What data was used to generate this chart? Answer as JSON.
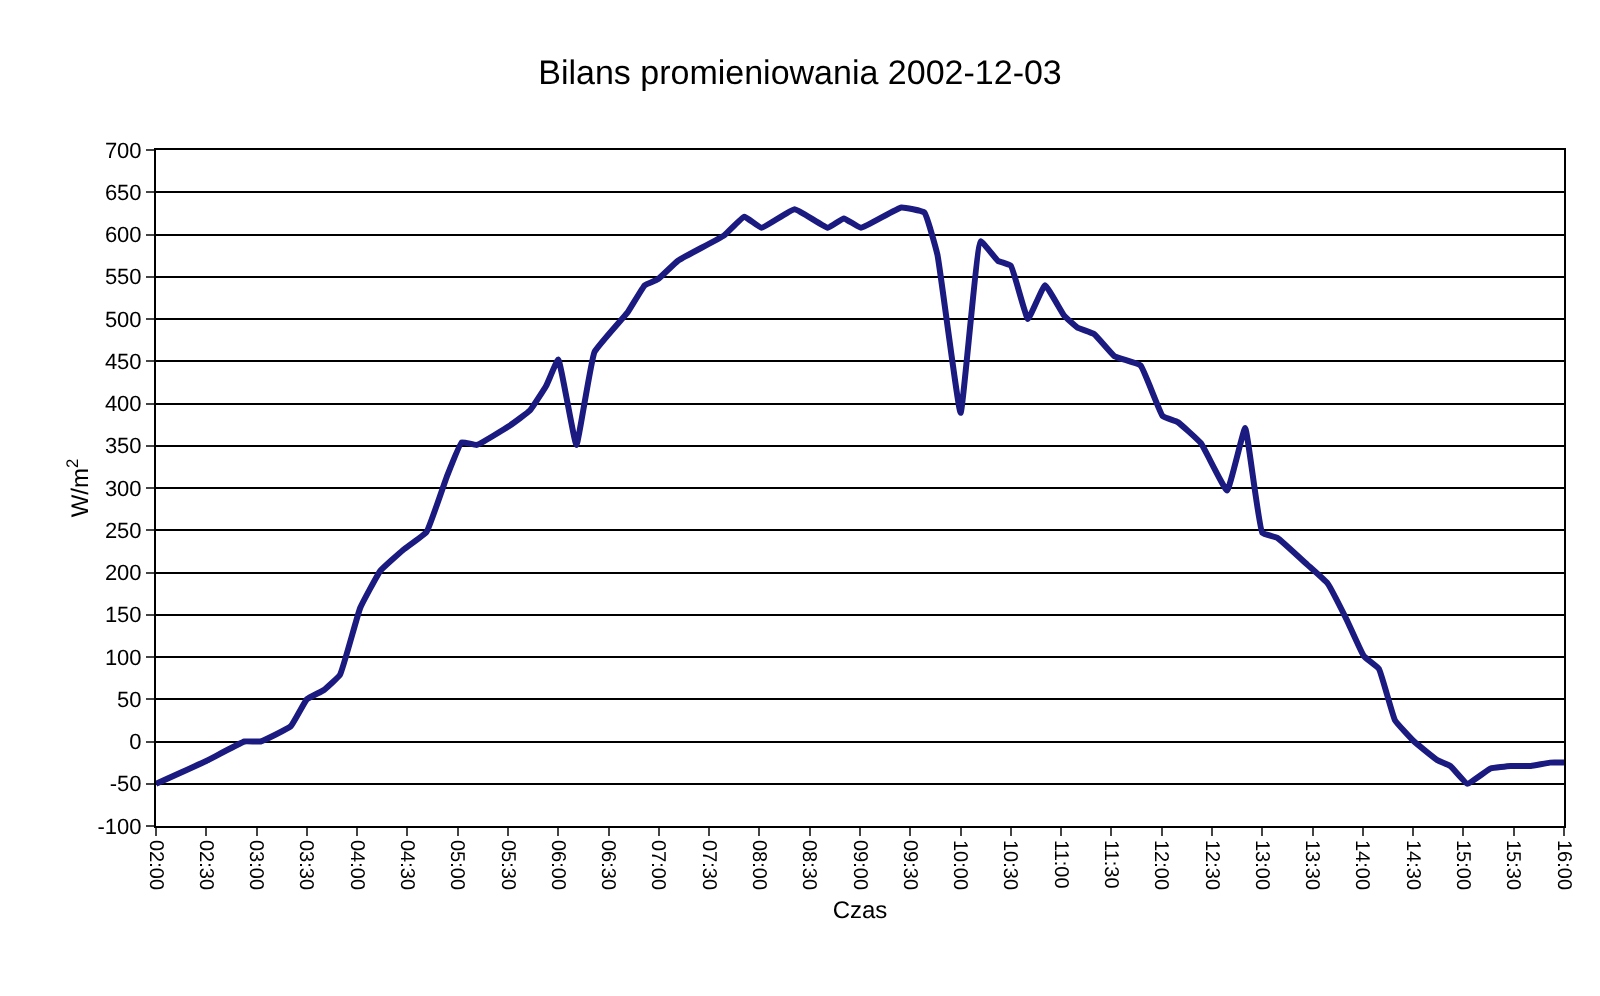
{
  "chart_data": {
    "type": "line",
    "title": "Bilans promieniowania 2002-12-03",
    "xlabel": "Czas",
    "ylabel": "W/m$^{2}$",
    "x": [
      2.0,
      2.5,
      2.88,
      3.04,
      3.34,
      3.5,
      3.67,
      3.83,
      4.03,
      4.23,
      4.46,
      4.69,
      4.89,
      5.04,
      5.19,
      5.52,
      5.72,
      5.88,
      6.0,
      6.18,
      6.36,
      6.69,
      6.86,
      6.99,
      7.19,
      7.65,
      7.85,
      8.02,
      8.35,
      8.68,
      8.84,
      9.01,
      9.41,
      9.64,
      9.77,
      10.0,
      10.2,
      10.37,
      10.5,
      10.67,
      10.84,
      11.03,
      11.16,
      11.33,
      11.53,
      11.79,
      12.01,
      12.16,
      12.39,
      12.65,
      12.83,
      13.0,
      13.15,
      13.45,
      13.65,
      13.84,
      14.01,
      14.16,
      14.32,
      14.51,
      14.74,
      14.87,
      15.04,
      15.27,
      15.47,
      15.67,
      15.86,
      16.0
    ],
    "series": [
      {
        "color": "#1a1a80",
        "values": [
          -50,
          -23,
          0,
          0,
          18,
          50,
          61,
          79,
          158,
          202,
          227,
          248,
          313,
          354,
          351,
          374,
          392,
          421,
          452,
          351,
          461,
          508,
          540,
          547,
          569,
          599,
          621,
          608,
          630,
          608,
          619,
          608,
          632,
          626,
          576,
          389,
          592,
          569,
          563,
          500,
          540,
          504,
          490,
          482,
          456,
          445,
          385,
          378,
          353,
          297,
          371,
          247,
          241,
          209,
          187,
          144,
          101,
          86,
          25,
          0,
          -22,
          -29,
          -50,
          -32,
          -29,
          -29,
          -25,
          -25
        ]
      }
    ],
    "xlim": [
      2,
      16
    ],
    "xticks": [
      {
        "value": 2,
        "label": "02:00"
      },
      {
        "value": 2.5,
        "label": "02:30"
      },
      {
        "value": 3,
        "label": "03:00"
      },
      {
        "value": 3.5,
        "label": "03:30"
      },
      {
        "value": 4,
        "label": "04:00"
      },
      {
        "value": 4.5,
        "label": "04:30"
      },
      {
        "value": 5,
        "label": "05:00"
      },
      {
        "value": 5.5,
        "label": "05:30"
      },
      {
        "value": 6,
        "label": "06:00"
      },
      {
        "value": 6.5,
        "label": "06:30"
      },
      {
        "value": 7,
        "label": "07:00"
      },
      {
        "value": 7.5,
        "label": "07:30"
      },
      {
        "value": 8,
        "label": "08:00"
      },
      {
        "value": 8.5,
        "label": "08:30"
      },
      {
        "value": 9,
        "label": "09:00"
      },
      {
        "value": 9.5,
        "label": "09:30"
      },
      {
        "value": 10,
        "label": "10:00"
      },
      {
        "value": 10.5,
        "label": "10:30"
      },
      {
        "value": 11,
        "label": "11:00"
      },
      {
        "value": 11.5,
        "label": "11:30"
      },
      {
        "value": 12,
        "label": "12:00"
      },
      {
        "value": 12.5,
        "label": "12:30"
      },
      {
        "value": 13,
        "label": "13:00"
      },
      {
        "value": 13.5,
        "label": "13:30"
      },
      {
        "value": 14,
        "label": "14:00"
      },
      {
        "value": 14.5,
        "label": "14:30"
      },
      {
        "value": 15,
        "label": "15:00"
      },
      {
        "value": 15.5,
        "label": "15:30"
      },
      {
        "value": 16,
        "label": "16:00"
      }
    ],
    "ylim": [
      -100,
      700
    ],
    "yticks": [
      -100,
      -50,
      0,
      50,
      100,
      150,
      200,
      250,
      300,
      350,
      400,
      450,
      500,
      550,
      600,
      650,
      700
    ],
    "grid": "y",
    "line_style": "solid"
  }
}
